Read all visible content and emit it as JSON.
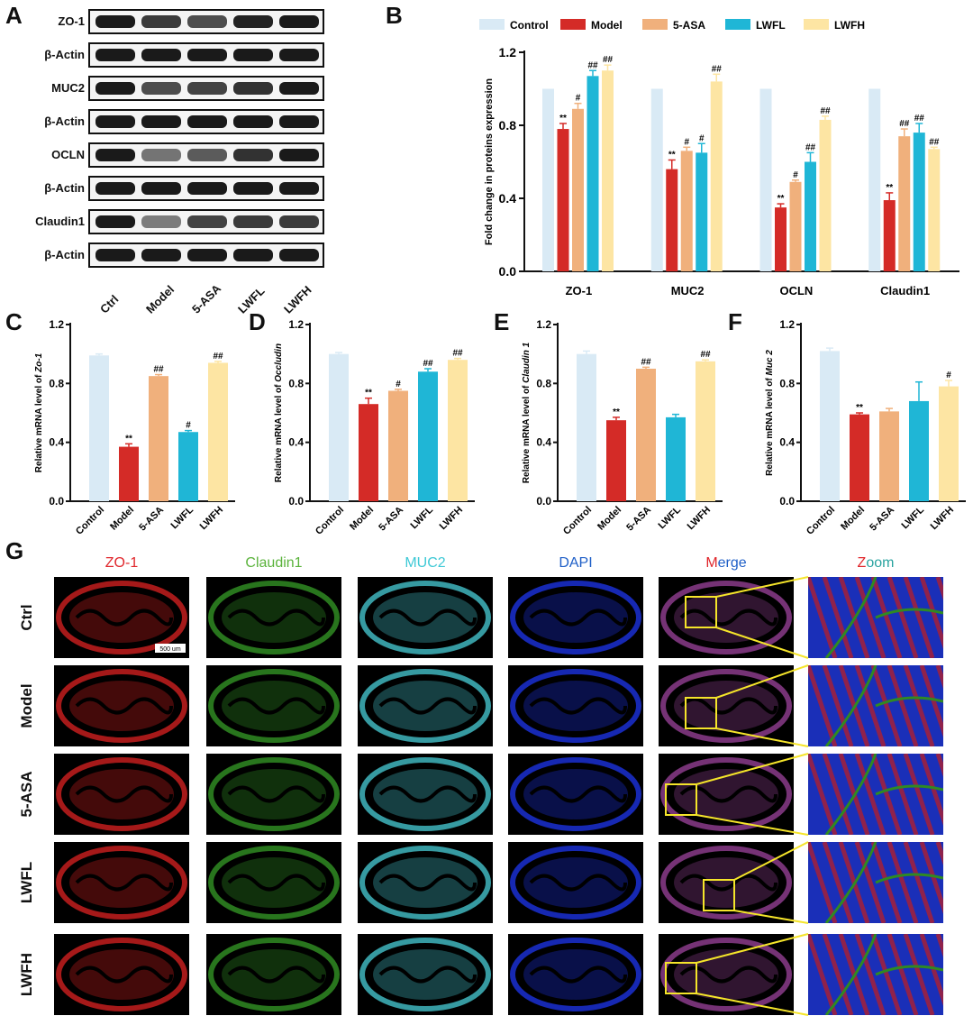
{
  "panel_letters": {
    "a": "A",
    "b": "B",
    "c": "C",
    "d": "D",
    "e": "E",
    "f": "F",
    "g": "G"
  },
  "western_blot": {
    "rows": [
      {
        "label": "ZO-1",
        "intensity": [
          1.0,
          0.8,
          0.7,
          0.95,
          1.0
        ]
      },
      {
        "label": "β-Actin",
        "intensity": [
          1.0,
          1.0,
          1.0,
          1.0,
          1.0
        ]
      },
      {
        "label": "MUC2",
        "intensity": [
          1.0,
          0.7,
          0.75,
          0.85,
          1.0
        ]
      },
      {
        "label": "β-Actin",
        "intensity": [
          1.0,
          1.0,
          1.0,
          1.0,
          1.0
        ]
      },
      {
        "label": "OCLN",
        "intensity": [
          1.0,
          0.45,
          0.6,
          0.85,
          1.0
        ]
      },
      {
        "label": "β-Actin",
        "intensity": [
          1.0,
          1.0,
          1.0,
          1.0,
          1.0
        ]
      },
      {
        "label": "Claudin1",
        "intensity": [
          1.0,
          0.4,
          0.75,
          0.8,
          0.8
        ]
      },
      {
        "label": "β-Actin",
        "intensity": [
          1.0,
          1.0,
          1.0,
          1.0,
          1.0
        ]
      }
    ],
    "lanes": [
      "Ctrl",
      "Model",
      "5-ASA",
      "LWFL",
      "LWFH"
    ]
  },
  "colors": {
    "Control": "#d9eaf5",
    "Model": "#d42b27",
    "5-ASA": "#f0b07c",
    "LWFL": "#1fb6d6",
    "LWFH": "#fde5a3"
  },
  "chart_data": [
    {
      "id": "B",
      "type": "bar",
      "legend": [
        "Control",
        "Model",
        "5-ASA",
        "LWFL",
        "LWFH"
      ],
      "categories": [
        "ZO-1",
        "MUC2",
        "OCLN",
        "Claudin1"
      ],
      "ylabel": "Fold change in proteins expression",
      "ylim": [
        0,
        1.2
      ],
      "yticks": [
        "0.0",
        "0.4",
        "0.8",
        "1.2"
      ],
      "series": [
        {
          "name": "Control",
          "values": [
            1.0,
            1.0,
            1.0,
            1.0
          ],
          "err": [
            0,
            0,
            0,
            0
          ],
          "marks": [
            "",
            "",
            "",
            ""
          ]
        },
        {
          "name": "Model",
          "values": [
            0.78,
            0.56,
            0.35,
            0.39
          ],
          "err": [
            0.03,
            0.05,
            0.02,
            0.04
          ],
          "marks": [
            "**",
            "**",
            "**",
            "**"
          ]
        },
        {
          "name": "5-ASA",
          "values": [
            0.89,
            0.66,
            0.49,
            0.74
          ],
          "err": [
            0.03,
            0.02,
            0.01,
            0.04
          ],
          "marks": [
            "#",
            "#",
            "#",
            "##"
          ]
        },
        {
          "name": "LWFL",
          "values": [
            1.07,
            0.65,
            0.6,
            0.76
          ],
          "err": [
            0.03,
            0.05,
            0.05,
            0.05
          ],
          "marks": [
            "##",
            "#",
            "##",
            "##"
          ]
        },
        {
          "name": "LWFH",
          "values": [
            1.1,
            1.04,
            0.83,
            0.67
          ],
          "err": [
            0.03,
            0.04,
            0.02,
            0.01
          ],
          "marks": [
            "##",
            "##",
            "##",
            "##"
          ]
        }
      ]
    },
    {
      "id": "C",
      "type": "bar",
      "categories": [
        "Control",
        "Model",
        "5-ASA",
        "LWFL",
        "LWFH"
      ],
      "ylabel_prefix": "Relative mRNA level of ",
      "ylabel_italic": "Zo-1",
      "ylim": [
        0,
        1.2
      ],
      "yticks": [
        "0.0",
        "0.4",
        "0.8",
        "1.2"
      ],
      "values": [
        0.99,
        0.37,
        0.85,
        0.47,
        0.94
      ],
      "err": [
        0.01,
        0.02,
        0.01,
        0.01,
        0.01
      ],
      "marks": [
        "",
        "**",
        "##",
        "#",
        "##"
      ]
    },
    {
      "id": "D",
      "type": "bar",
      "categories": [
        "Control",
        "Model",
        "5-ASA",
        "LWFL",
        "LWFH"
      ],
      "ylabel_prefix": "Relative mRNA level of ",
      "ylabel_italic": "Occludin",
      "ylim": [
        0,
        1.2
      ],
      "yticks": [
        "0.0",
        "0.4",
        "0.8",
        "1.2"
      ],
      "values": [
        1.0,
        0.66,
        0.75,
        0.88,
        0.96
      ],
      "err": [
        0.01,
        0.04,
        0.01,
        0.02,
        0.01
      ],
      "marks": [
        "",
        "**",
        "#",
        "##",
        "##"
      ]
    },
    {
      "id": "E",
      "type": "bar",
      "categories": [
        "Control",
        "Model",
        "5-ASA",
        "LWFL",
        "LWFH"
      ],
      "ylabel_prefix": "Relative mRNA level of ",
      "ylabel_italic": "Claudin 1",
      "ylim": [
        0,
        1.2
      ],
      "yticks": [
        "0.0",
        "0.4",
        "0.8",
        "1.2"
      ],
      "values": [
        1.0,
        0.55,
        0.9,
        0.57,
        0.95
      ],
      "err": [
        0.02,
        0.02,
        0.01,
        0.02,
        0.01
      ],
      "marks": [
        "",
        "**",
        "##",
        "",
        "##"
      ]
    },
    {
      "id": "F",
      "type": "bar",
      "categories": [
        "Control",
        "Model",
        "5-ASA",
        "LWFL",
        "LWFH"
      ],
      "ylabel_prefix": "Relative mRNA level of ",
      "ylabel_italic": "Muc 2",
      "ylim": [
        0,
        1.2
      ],
      "yticks": [
        "0.0",
        "0.4",
        "0.8",
        "1.2"
      ],
      "values": [
        1.02,
        0.59,
        0.61,
        0.68,
        0.78
      ],
      "err": [
        0.02,
        0.01,
        0.02,
        0.13,
        0.04
      ],
      "marks": [
        "",
        "**",
        "",
        "",
        "#"
      ]
    }
  ],
  "immuno": {
    "columns": [
      {
        "label": "ZO-1",
        "color": "#e0262b"
      },
      {
        "label": "Claudin1",
        "color": "#5bb33c"
      },
      {
        "label": "MUC2",
        "color": "#3fc9d6"
      },
      {
        "label": "DAPI",
        "color": "#1f5fc7"
      },
      {
        "label_parts": [
          "M",
          "erge"
        ],
        "colors": [
          "#e0262b",
          "#1f5fc7"
        ]
      },
      {
        "label_parts": [
          "Z",
          "oom"
        ],
        "colors": [
          "#e0262b",
          "#2aa3a0"
        ]
      }
    ],
    "rows": [
      "Ctrl",
      "Model",
      "5-ASA",
      "LWFL",
      "LWFH"
    ],
    "scale_bar": "500 um",
    "tissue_colors": [
      "#c21d1d",
      "#2f8a22",
      "#3fb5bd",
      "#1a2fd1",
      "#8a3b8a",
      "#5a3fa8"
    ]
  }
}
